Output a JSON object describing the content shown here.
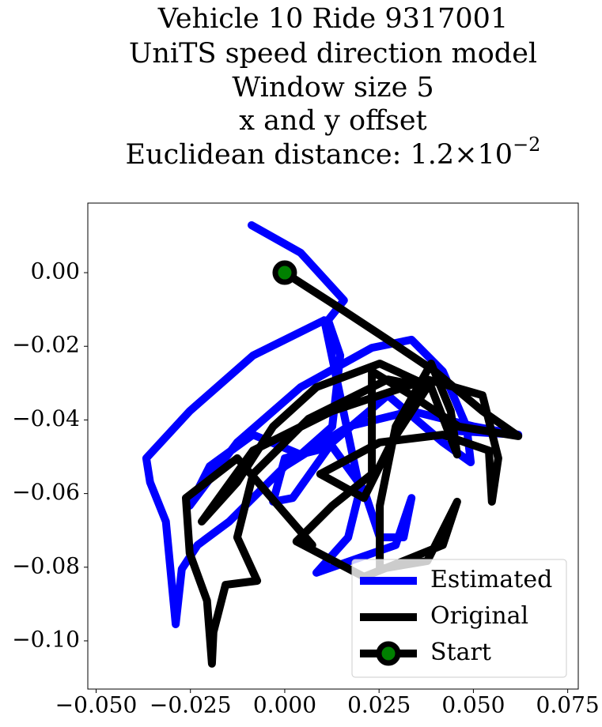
{
  "chart_data": {
    "type": "line",
    "title_lines": [
      "Vehicle 10 Ride 9317001",
      "UniTS speed direction model",
      "Window size 5",
      "x and y offset"
    ],
    "title_distance": {
      "text": "Euclidean distance: 1.2×10",
      "exponent": "−2"
    },
    "xlim": [
      -0.0522,
      0.0778
    ],
    "ylim": [
      -0.1131,
      0.0189
    ],
    "xticks": [
      {
        "value": -0.05,
        "label": "−0.050"
      },
      {
        "value": -0.025,
        "label": "−0.025"
      },
      {
        "value": 0,
        "label": "0.000"
      },
      {
        "value": 0.025,
        "label": "0.025"
      },
      {
        "value": 0.05,
        "label": "0.050"
      },
      {
        "value": 0.075,
        "label": "0.075"
      }
    ],
    "yticks": [
      {
        "value": 0,
        "label": "0.00"
      },
      {
        "value": -0.02,
        "label": "−0.02"
      },
      {
        "value": -0.04,
        "label": "−0.04"
      },
      {
        "value": -0.06,
        "label": "−0.06"
      },
      {
        "value": -0.08,
        "label": "−0.08"
      },
      {
        "value": -0.1,
        "label": "−0.10"
      }
    ],
    "legend": "lower right",
    "series": [
      {
        "name": "Estimated",
        "color": "#0000ff",
        "x": [
          -0.0088,
          0.0042,
          0.0157,
          0.0115,
          0.0147,
          0.0126,
          0.0042,
          -0.0084,
          -0.0199,
          -0.0252,
          -0.0126,
          0.0042,
          0.0231,
          0.0336,
          0.0419,
          0.0482,
          0.0493,
          0.0419,
          0.0273,
          0.0126,
          0.0021,
          -0.0031,
          0.0,
          0.0126,
          0.021,
          0.0252,
          0.0315,
          0.0336,
          0.0294,
          0.0084,
          0.0168,
          0.0199,
          0.0105,
          -0.0084,
          -0.0252,
          -0.0367,
          -0.0357,
          -0.0315,
          -0.0289,
          -0.0273,
          -0.0231,
          -0.0147,
          0.0,
          0.0168,
          0.0336,
          0.0503,
          0.0619,
          0.044
        ],
        "y": [
          0.0129,
          0.0054,
          -0.0075,
          -0.0129,
          -0.0225,
          -0.0418,
          -0.0494,
          -0.044,
          -0.0526,
          -0.0633,
          -0.0461,
          -0.0311,
          -0.0204,
          -0.0182,
          -0.0268,
          -0.0418,
          -0.0515,
          -0.0461,
          -0.0333,
          -0.0461,
          -0.0612,
          -0.0622,
          -0.0504,
          -0.0472,
          -0.059,
          -0.0719,
          -0.0719,
          -0.0612,
          -0.074,
          -0.0815,
          -0.0719,
          -0.059,
          -0.0129,
          -0.0225,
          -0.0376,
          -0.0504,
          -0.0569,
          -0.0676,
          -0.0955,
          -0.0805,
          -0.074,
          -0.0676,
          -0.0526,
          -0.0418,
          -0.0376,
          -0.0418,
          -0.044,
          -0.0429
        ]
      },
      {
        "name": "Original",
        "color": "#000000",
        "x": [
          0,
          0.0147,
          0.0273,
          0.0398,
          0.0524,
          0.0619,
          0.0461,
          0.0336,
          0.0231,
          0.0231,
          0.0126,
          0.0031,
          0.021,
          0.0315,
          0.0419,
          0.0457,
          0.0378,
          0.0252,
          0.0252,
          0.0294,
          0.0388,
          0.044,
          0.0457,
          0.0388,
          0.0252,
          0.0084,
          -0.0031,
          -0.0126,
          -0.022,
          -0.0084,
          0.0126,
          0.0378,
          0.0524,
          0.0566,
          0.0549,
          0.0541,
          0.0419,
          0.0252,
          0.0094,
          0.021,
          0.0283,
          0.0378,
          0.0273,
          0.0063,
          -0.0084,
          -0.0126,
          -0.0073,
          -0.0157,
          -0.0189,
          -0.0193,
          -0.0206,
          -0.0252,
          -0.0262,
          -0.0126,
          0.0073
        ],
        "y": [
          0,
          -0.0097,
          -0.0182,
          -0.0268,
          -0.0376,
          -0.0444,
          -0.0418,
          -0.0333,
          -0.0268,
          -0.0547,
          -0.0633,
          -0.073,
          -0.0826,
          -0.0783,
          -0.074,
          -0.0622,
          -0.0783,
          -0.0805,
          -0.0633,
          -0.0418,
          -0.0247,
          -0.0376,
          -0.0494,
          -0.0311,
          -0.0247,
          -0.0311,
          -0.0418,
          -0.0569,
          -0.0676,
          -0.0483,
          -0.0376,
          -0.029,
          -0.0333,
          -0.0504,
          -0.0622,
          -0.0483,
          -0.044,
          -0.0461,
          -0.0547,
          -0.0612,
          -0.0461,
          -0.0311,
          -0.029,
          -0.0397,
          -0.0547,
          -0.0719,
          -0.0837,
          -0.0848,
          -0.0976,
          -0.1062,
          -0.0891,
          -0.0762,
          -0.0612,
          -0.0504,
          -0.074
        ]
      },
      {
        "name": "Start",
        "color": "#000000",
        "marker_color": "#008000",
        "marker": true,
        "x": [
          0
        ],
        "y": [
          0
        ]
      }
    ]
  }
}
